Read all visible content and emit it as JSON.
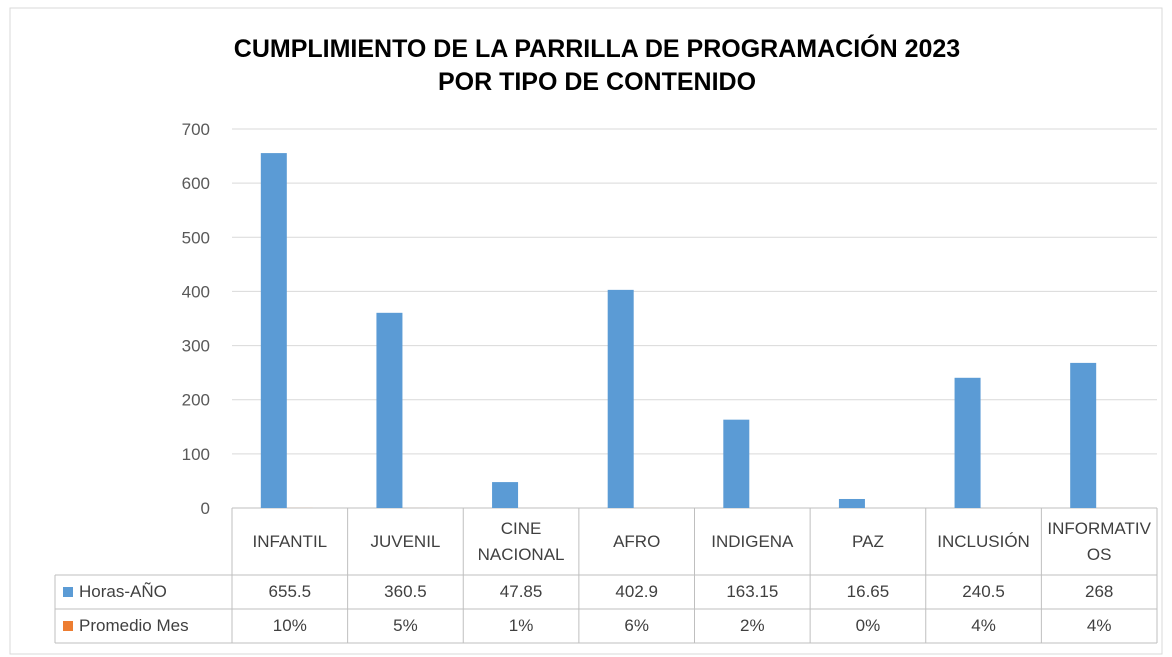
{
  "chart_data": {
    "type": "bar",
    "title": [
      "CUMPLIMIENTO DE LA PARRILLA DE PROGRAMACIÓN 2023",
      "POR TIPO DE CONTENIDO"
    ],
    "categories": [
      "INFANTIL",
      "JUVENIL",
      "CINE NACIONAL",
      "AFRO",
      "INDIGENA",
      "PAZ",
      "INCLUSIÓN",
      "INFORMATIVOS"
    ],
    "series": [
      {
        "name": "Horas-AÑO",
        "color": "#5b9bd5",
        "values": [
          655.5,
          360.5,
          47.85,
          402.9,
          163.15,
          16.65,
          240.5,
          268
        ]
      },
      {
        "name": "Promedio Mes",
        "color": "#ed7d31",
        "values": [
          0.1,
          0.05,
          0.01,
          0.06,
          0.02,
          0,
          0.04,
          0.04
        ],
        "value_labels": [
          "10%",
          "5%",
          "1%",
          "6%",
          "2%",
          "0%",
          "4%",
          "4%"
        ]
      }
    ],
    "ylim": [
      0,
      700
    ],
    "yticks": [
      0,
      100,
      200,
      300,
      400,
      500,
      600,
      700
    ],
    "grid": true
  }
}
